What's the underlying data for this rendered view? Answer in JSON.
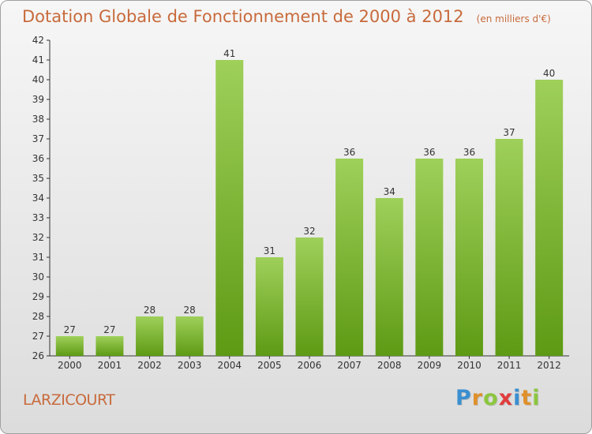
{
  "header": {
    "title": "Dotation Globale de Fonctionnement de 2000 à 2012",
    "unit": "(en milliers d'€)"
  },
  "footer": {
    "commune": "LARZICOURT",
    "logo_letters": [
      "P",
      "r",
      "o",
      "x",
      "i",
      "t",
      "i"
    ],
    "logo_colors": [
      "#3a8fd0",
      "#e0902a",
      "#8cc63f",
      "#e03c3c",
      "#3a8fd0",
      "#e0902a",
      "#8cc63f"
    ]
  },
  "chart_data": {
    "type": "bar",
    "title": "Dotation Globale de Fonctionnement de 2000 à 2012",
    "subtitle": "(en milliers d'€)",
    "xlabel": "",
    "ylabel": "",
    "categories": [
      "2000",
      "2001",
      "2002",
      "2003",
      "2004",
      "2005",
      "2006",
      "2007",
      "2008",
      "2009",
      "2010",
      "2011",
      "2012"
    ],
    "values": [
      27,
      27,
      28,
      28,
      41,
      31,
      32,
      36,
      34,
      36,
      36,
      37,
      40
    ],
    "ylim": [
      26,
      42
    ],
    "yticks": [
      26,
      27,
      28,
      29,
      30,
      31,
      32,
      33,
      34,
      35,
      36,
      37,
      38,
      39,
      40,
      41,
      42
    ],
    "grid": false,
    "data_labels": true,
    "colors": {
      "bar_light": "#9ed05a",
      "bar_dark": "#5e9a14",
      "axis": "#333333",
      "text_accent": "#c86a3c"
    }
  }
}
